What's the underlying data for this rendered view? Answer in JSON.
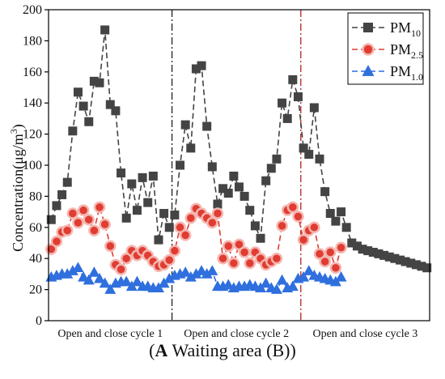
{
  "chart_data": {
    "type": "line",
    "ylabel_main": "Concentration(μg/m",
    "ylabel_sup": "3",
    "ylabel_end": ")",
    "ylim": [
      0,
      200
    ],
    "yticks": [
      0,
      20,
      40,
      60,
      80,
      100,
      120,
      140,
      160,
      180,
      200
    ],
    "cycle_labels": [
      "Open and close cycle 1",
      "Open and close cycle 2",
      "Open and close cycle 3"
    ],
    "divider_positions": [
      23.5,
      47.5
    ],
    "legend_placement": "top-right",
    "series": [
      {
        "name": "PM",
        "subscript": "10",
        "color": "#444444",
        "marker": "square",
        "x": [
          1,
          2,
          3,
          4,
          5,
          6,
          7,
          8,
          9,
          10,
          11,
          12,
          13,
          14,
          15,
          16,
          17,
          18,
          19,
          20,
          21,
          22,
          23,
          24,
          25,
          26,
          27,
          28,
          29,
          30,
          31,
          32,
          33,
          34,
          35,
          36,
          37,
          38,
          39,
          40,
          41,
          42,
          43,
          44,
          45,
          46,
          47,
          48,
          49,
          50,
          51,
          52,
          53,
          54,
          55,
          56,
          57,
          58,
          59,
          60,
          61,
          62,
          63,
          64,
          65,
          66,
          67,
          68,
          69,
          70,
          71
        ],
        "values": [
          65,
          74,
          81,
          89,
          122,
          147,
          138,
          128,
          154,
          153,
          187,
          139,
          135,
          95,
          66,
          88,
          71,
          92,
          76,
          93,
          52,
          69,
          60,
          68,
          100,
          126,
          111,
          162,
          164,
          125,
          99,
          75,
          85,
          82,
          93,
          86,
          80,
          71,
          61,
          53,
          90,
          98,
          104,
          140,
          130,
          155,
          144,
          111,
          107,
          137,
          104,
          83,
          69,
          64,
          70,
          60,
          50,
          48,
          46,
          45,
          44,
          43,
          42,
          41,
          40,
          39,
          38,
          37,
          36,
          35,
          34
        ]
      },
      {
        "name": "PM",
        "subscript": "2.5",
        "color": "#e03c31",
        "marker": "circle",
        "x": [
          1,
          2,
          3,
          4,
          5,
          6,
          7,
          8,
          9,
          10,
          11,
          12,
          13,
          14,
          15,
          16,
          17,
          18,
          19,
          20,
          21,
          22,
          23,
          24,
          25,
          26,
          27,
          28,
          29,
          30,
          31,
          32,
          33,
          34,
          35,
          36,
          37,
          38,
          39,
          40,
          41,
          42,
          43,
          44,
          45,
          46,
          47,
          48,
          49,
          50,
          51,
          52,
          53,
          54,
          55
        ],
        "values": [
          46,
          51,
          57,
          58,
          69,
          63,
          71,
          65,
          58,
          73,
          62,
          48,
          36,
          33,
          40,
          45,
          42,
          45,
          42,
          38,
          35,
          36,
          39,
          45,
          60,
          55,
          66,
          72,
          69,
          66,
          63,
          69,
          40,
          48,
          37,
          49,
          44,
          37,
          44,
          40,
          36,
          38,
          40,
          61,
          71,
          73,
          67,
          52,
          58,
          60,
          43,
          38,
          44,
          34,
          47
        ]
      },
      {
        "name": "PM",
        "subscript": "1.0",
        "color": "#2f6fde",
        "marker": "triangle",
        "x": [
          1,
          2,
          3,
          4,
          5,
          6,
          7,
          8,
          9,
          10,
          11,
          12,
          13,
          14,
          15,
          16,
          17,
          18,
          19,
          20,
          21,
          22,
          23,
          24,
          25,
          26,
          27,
          28,
          29,
          30,
          31,
          32,
          33,
          34,
          35,
          36,
          37,
          38,
          39,
          40,
          41,
          42,
          43,
          44,
          45,
          46,
          47,
          48,
          49,
          50,
          51,
          52,
          53,
          54,
          55
        ],
        "values": [
          28,
          29,
          30,
          30,
          32,
          34,
          28,
          26,
          31,
          27,
          24,
          20,
          24,
          25,
          25,
          22,
          25,
          22,
          22,
          21,
          21,
          24,
          27,
          29,
          30,
          31,
          28,
          30,
          32,
          30,
          32,
          22,
          22,
          23,
          21,
          22,
          22,
          23,
          22,
          21,
          24,
          21,
          20,
          26,
          21,
          22,
          27,
          28,
          32,
          29,
          28,
          27,
          26,
          25,
          28
        ]
      }
    ]
  },
  "caption": {
    "label": "A",
    "text": " Waiting area (B)"
  }
}
